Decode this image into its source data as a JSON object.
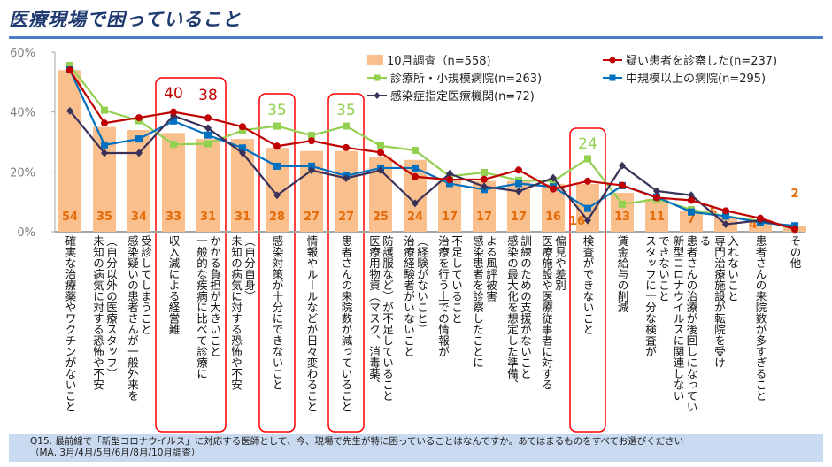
{
  "title": "医療現場で困っていること",
  "footer": {
    "question": "Q15. 最前線で「新型コロナウイルス」に対応する医師として、今、現場で先生が特に困っていることはなんですか。あてはまるものをすべてお選びください",
    "note": "（MA, 3月/4月/5月/6月/8月/10月調査）"
  },
  "chart_data": {
    "type": "bar+line",
    "ylim": [
      0,
      60
    ],
    "yticks": [
      "0%",
      "20%",
      "40%",
      "60%"
    ],
    "ytick_values": [
      0,
      20,
      40,
      60
    ],
    "grid": false,
    "legend_placement": "top-right",
    "categories": [
      "確実な治療薬やワクチンがないこと",
      "未知の病気に対する恐怖や不安\n（自分以外の医療スタッフ）",
      "感染疑いの患者さんが一般外来を\n受診してしまうこと",
      "収入減による経営難",
      "一般的な疾病に比べて診療に\nかかる負担が大きいこと",
      "未知の病気に対する恐怖や不安\n（自分自身）",
      "感染対策が十分にできないこと",
      "情報やルールなどが日々変わること",
      "患者さんの来院数が減っていること",
      "医療用物資（マスク、消毒薬、\n防護服など）が不足していること",
      "治療経験者がいないこと\n（経験がないこと）",
      "治療を行う上での情報が\n不足していること",
      "感染患者を診察したことに\nよる風評被害",
      "感染の最大化を想定した準備、\n訓練のための支援がないこと",
      "医療施設や医療従事者に対する\n偏見や差別",
      "検査ができないこと",
      "賃金給与の削減",
      "スタッフに十分な検査が\nできないこと",
      "新型コロナウイルスに関連しない\n患者さんの治療が後回しになってい\nる",
      "専門治療施設が転院を受け\n入れないこと",
      "患者さんの来院数が多すぎること",
      "その他"
    ],
    "bar_series": {
      "name": "10月調査（n=558)",
      "color": "#F9C08E",
      "label_color": "#E46C0A",
      "values": [
        54,
        35,
        34,
        33,
        31,
        31,
        28,
        27,
        27,
        25,
        24,
        17,
        17,
        17,
        16,
        16,
        13,
        11,
        7,
        5,
        4,
        2
      ]
    },
    "line_series": [
      {
        "name": "疑い患者を診察した(n=237)",
        "color": "#C00000",
        "marker": "circle",
        "values": [
          54,
          36.3,
          38.1,
          40,
          38,
          35.1,
          28.6,
          30.4,
          28.1,
          26.5,
          18.4,
          17.4,
          17.5,
          20.6,
          14.3,
          16.9,
          15.5,
          11.4,
          10.5,
          7.0,
          4.5,
          0.8
        ]
      },
      {
        "name": "診療所・小規模病院(n=263)",
        "color": "#92D050",
        "marker": "square",
        "values": [
          55.6,
          40.6,
          37.1,
          29.2,
          29.4,
          33.9,
          35.3,
          32.2,
          35.3,
          28.7,
          27.2,
          18.5,
          19.8,
          17.2,
          16.9,
          24.4,
          9.2,
          10.9,
          7.4,
          5.2,
          3.6,
          1.3
        ]
      },
      {
        "name": "中規模以上の病院(n=295)",
        "color": "#0070C0",
        "marker": "square",
        "values": [
          54.1,
          29.0,
          31.0,
          37.0,
          32.3,
          28.0,
          21.9,
          21.9,
          18.7,
          21.3,
          21.3,
          16.1,
          14.1,
          16.1,
          15.0,
          7.8,
          15.4,
          11.6,
          6.6,
          5.2,
          3.1,
          2.0
        ]
      },
      {
        "name": "感染症指定医療機関(n=72)",
        "color": "#3A3158",
        "marker": "diamond",
        "values": [
          40.4,
          26.3,
          26.3,
          38.8,
          34.6,
          26.3,
          12.2,
          20.5,
          17.9,
          20.5,
          9.5,
          19.4,
          15.1,
          13.5,
          18.0,
          3.8,
          22.1,
          13.6,
          12.2,
          2.5,
          3.8,
          1.1
        ]
      }
    ],
    "annotations": [
      {
        "category_index": 3,
        "text": "40",
        "color": "#C00000"
      },
      {
        "category_index": 4,
        "text": "38",
        "color": "#C00000"
      },
      {
        "category_index": 6,
        "text": "35",
        "color": "#92D050"
      },
      {
        "category_index": 8,
        "text": "35",
        "color": "#92D050"
      },
      {
        "category_index": 15,
        "text": "24",
        "color": "#92D050"
      }
    ],
    "highlight_color": "#FF0000"
  }
}
